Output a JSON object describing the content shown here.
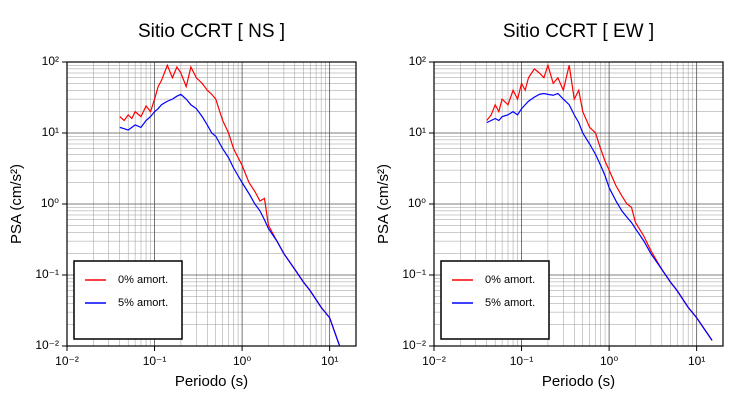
{
  "chart_data": [
    {
      "type": "line",
      "title": "Sitio CCRT [ NS ]",
      "xlabel": "Periodo (s)",
      "ylabel": "PSA (cm/s²)",
      "log_x": true,
      "log_y": true,
      "grid": true,
      "legend": "lower left",
      "xlim": [
        0.01,
        20
      ],
      "ylim": [
        0.01,
        100
      ],
      "xticks": [
        {
          "value": 0.01,
          "label": "10⁻²"
        },
        {
          "value": 0.1,
          "label": "10⁻¹"
        },
        {
          "value": 1,
          "label": "10⁰"
        },
        {
          "value": 10,
          "label": "10¹"
        }
      ],
      "yticks": [
        {
          "value": 0.01,
          "label": "10⁻²"
        },
        {
          "value": 0.1,
          "label": "10⁻¹"
        },
        {
          "value": 1,
          "label": "10⁰"
        },
        {
          "value": 10,
          "label": "10¹"
        },
        {
          "value": 100,
          "label": "10²"
        }
      ],
      "x": [
        0.04,
        0.045,
        0.05,
        0.055,
        0.06,
        0.07,
        0.08,
        0.09,
        0.1,
        0.11,
        0.12,
        0.14,
        0.16,
        0.18,
        0.2,
        0.23,
        0.26,
        0.3,
        0.35,
        0.4,
        0.45,
        0.5,
        0.6,
        0.7,
        0.8,
        0.9,
        1,
        1.2,
        1.4,
        1.6,
        1.8,
        2,
        2.5,
        3,
        4,
        5,
        6,
        8,
        10,
        13
      ],
      "series": [
        {
          "name": "0% amort.",
          "color": "#ff0000",
          "values": [
            17,
            15,
            18,
            16,
            20,
            17,
            24,
            20,
            30,
            45,
            55,
            90,
            60,
            85,
            70,
            45,
            85,
            60,
            50,
            40,
            35,
            30,
            15,
            10,
            6,
            4.5,
            3.5,
            2,
            1.5,
            1.1,
            1.2,
            0.5,
            0.3,
            0.2,
            0.12,
            0.08,
            0.06,
            0.035,
            0.025,
            0.01
          ]
        },
        {
          "name": "5% amort.",
          "color": "#0000ff",
          "values": [
            12,
            11.5,
            11,
            12,
            13,
            12,
            15,
            17,
            20,
            22,
            25,
            28,
            30,
            33,
            35,
            30,
            25,
            22,
            17,
            13,
            10,
            9,
            6,
            4.5,
            3.2,
            2.5,
            2,
            1.4,
            1,
            0.8,
            0.6,
            0.45,
            0.3,
            0.2,
            0.12,
            0.08,
            0.06,
            0.035,
            0.025,
            0.01
          ]
        }
      ]
    },
    {
      "type": "line",
      "title": "Sitio CCRT [ EW ]",
      "xlabel": "Periodo (s)",
      "ylabel": "PSA (cm/s²)",
      "log_x": true,
      "log_y": true,
      "grid": true,
      "legend": "lower left",
      "xlim": [
        0.01,
        20
      ],
      "ylim": [
        0.01,
        100
      ],
      "xticks": [
        {
          "value": 0.01,
          "label": "10⁻²"
        },
        {
          "value": 0.1,
          "label": "10⁻¹"
        },
        {
          "value": 1,
          "label": "10⁰"
        },
        {
          "value": 10,
          "label": "10¹"
        }
      ],
      "yticks": [
        {
          "value": 0.01,
          "label": "10⁻²"
        },
        {
          "value": 0.1,
          "label": "10⁻¹"
        },
        {
          "value": 1,
          "label": "10⁰"
        },
        {
          "value": 10,
          "label": "10¹"
        },
        {
          "value": 100,
          "label": "10²"
        }
      ],
      "x": [
        0.04,
        0.045,
        0.05,
        0.055,
        0.06,
        0.07,
        0.08,
        0.09,
        0.1,
        0.11,
        0.12,
        0.14,
        0.16,
        0.18,
        0.2,
        0.23,
        0.26,
        0.3,
        0.35,
        0.4,
        0.45,
        0.5,
        0.6,
        0.7,
        0.8,
        0.9,
        1,
        1.2,
        1.4,
        1.6,
        1.8,
        2,
        2.5,
        3,
        4,
        5,
        6,
        8,
        10,
        15
      ],
      "series": [
        {
          "name": "0% amort.",
          "color": "#ff0000",
          "values": [
            15,
            18,
            25,
            20,
            30,
            25,
            40,
            30,
            50,
            40,
            60,
            80,
            70,
            60,
            90,
            50,
            60,
            40,
            90,
            30,
            40,
            20,
            12,
            10,
            6,
            4,
            3,
            1.8,
            1.3,
            1,
            0.9,
            0.55,
            0.35,
            0.22,
            0.12,
            0.08,
            0.06,
            0.035,
            0.025,
            0.012
          ]
        },
        {
          "name": "5% amort.",
          "color": "#0000ff",
          "values": [
            14,
            15,
            16,
            15,
            17,
            18,
            20,
            18,
            22,
            25,
            28,
            32,
            35,
            36,
            35,
            34,
            36,
            30,
            25,
            18,
            14,
            10,
            7,
            5,
            3.5,
            2.5,
            1.7,
            1.1,
            0.8,
            0.65,
            0.55,
            0.45,
            0.3,
            0.2,
            0.12,
            0.08,
            0.06,
            0.035,
            0.025,
            0.012
          ]
        }
      ]
    }
  ]
}
